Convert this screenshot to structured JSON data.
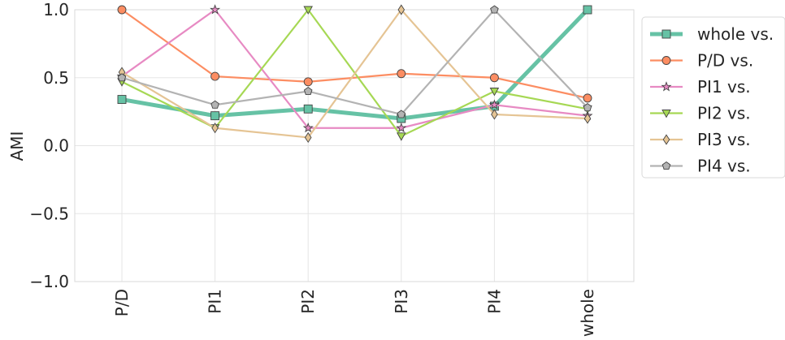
{
  "chart_data": {
    "type": "line",
    "title": "",
    "xlabel": "",
    "ylabel": "AMI",
    "categories": [
      "P/D",
      "PI1",
      "PI2",
      "PI3",
      "PI4",
      "whole"
    ],
    "ylim": [
      -1.0,
      1.0
    ],
    "yticks": [
      "1.0",
      "0.5",
      "0.0",
      "−0.5",
      "−1.0"
    ],
    "ytick_values": [
      1.0,
      0.5,
      0.0,
      -0.5,
      -1.0
    ],
    "grid": true,
    "legend_position": "right",
    "series": [
      {
        "name": "whole vs.",
        "color": "#66c2a5",
        "marker": "square",
        "values": [
          0.34,
          0.22,
          0.27,
          0.2,
          0.29,
          1.0
        ]
      },
      {
        "name": "P/D vs.",
        "color": "#fc8d62",
        "marker": "circle",
        "values": [
          1.0,
          0.51,
          0.47,
          0.53,
          0.5,
          0.35
        ]
      },
      {
        "name": "PI1 vs.",
        "color": "#e78ac3",
        "marker": "star",
        "values": [
          0.51,
          1.0,
          0.13,
          0.13,
          0.3,
          0.22
        ]
      },
      {
        "name": "PI2 vs.",
        "color": "#a6d854",
        "marker": "triangle-down",
        "values": [
          0.47,
          0.13,
          1.0,
          0.07,
          0.4,
          0.27
        ]
      },
      {
        "name": "PI3 vs.",
        "color": "#e5c494",
        "marker": "diamond",
        "values": [
          0.54,
          0.13,
          0.06,
          1.0,
          0.23,
          0.2
        ]
      },
      {
        "name": "PI4 vs.",
        "color": "#b3b3b3",
        "marker": "pentagon",
        "values": [
          0.5,
          0.3,
          0.4,
          0.23,
          1.0,
          0.28
        ]
      }
    ]
  }
}
